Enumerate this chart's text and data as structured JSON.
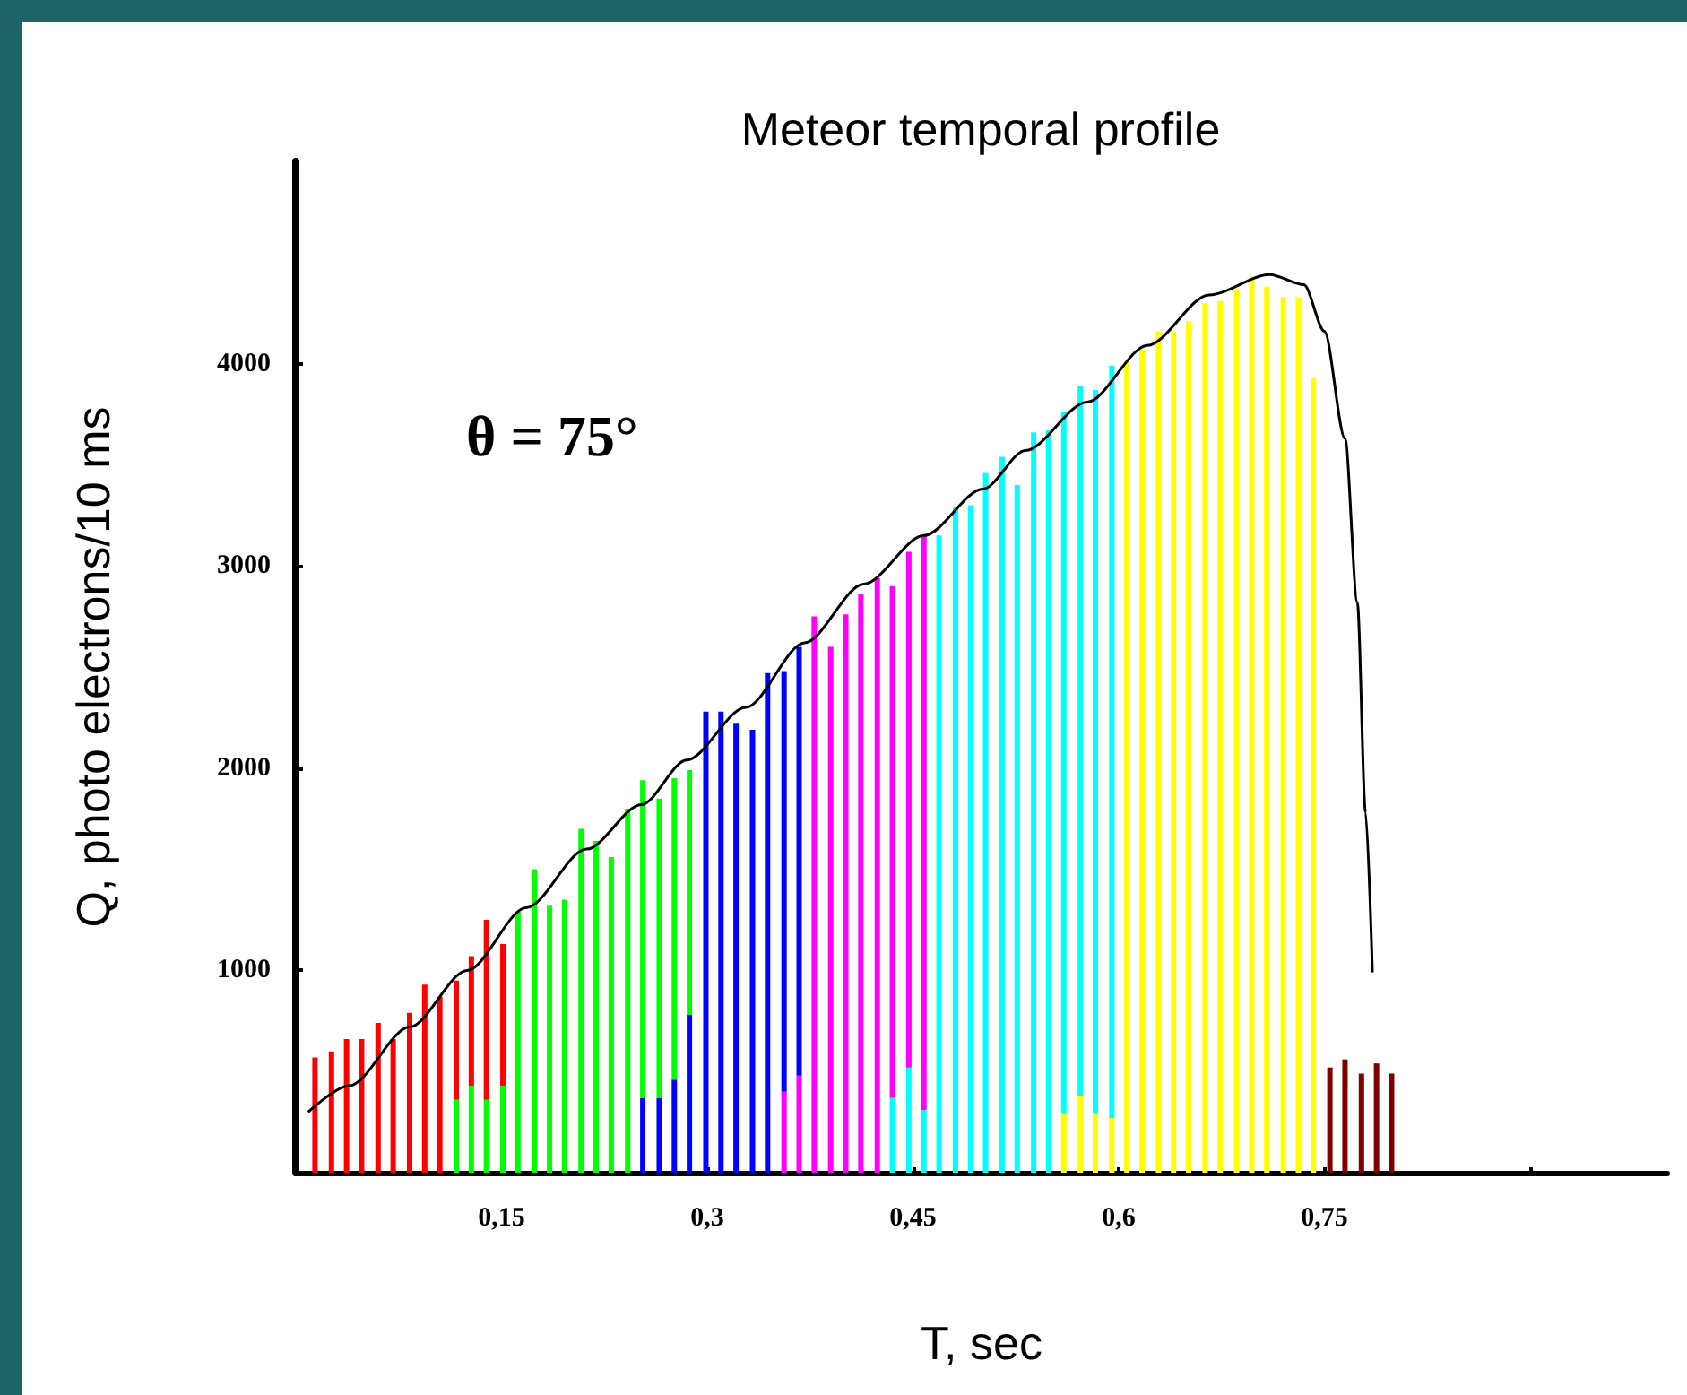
{
  "chart_data": {
    "type": "bar",
    "stacked": true,
    "title": "Meteor temporal profile",
    "xlabel": "T, sec",
    "ylabel": "Q, photo electrons/10 ms",
    "annotations": [
      "θ = 75°"
    ],
    "x": [
      0.014,
      0.026,
      0.037,
      0.048,
      0.06,
      0.071,
      0.083,
      0.094,
      0.105,
      0.117,
      0.128,
      0.139,
      0.151,
      0.162,
      0.174,
      0.185,
      0.196,
      0.208,
      0.219,
      0.23,
      0.242,
      0.253,
      0.265,
      0.276,
      0.287,
      0.299,
      0.31,
      0.321,
      0.333,
      0.344,
      0.356,
      0.367,
      0.378,
      0.39,
      0.401,
      0.412,
      0.424,
      0.435,
      0.447,
      0.458,
      0.469,
      0.481,
      0.492,
      0.503,
      0.515,
      0.526,
      0.538,
      0.549,
      0.56,
      0.572,
      0.583,
      0.595,
      0.606,
      0.617,
      0.629,
      0.64,
      0.651,
      0.663,
      0.674,
      0.686,
      0.697,
      0.708,
      0.72,
      0.731,
      0.742,
      0.754,
      0.765,
      0.777,
      0.788,
      0.799
    ],
    "xlim": [
      0,
      1
    ],
    "xticks": [
      {
        "value": 0.15,
        "label": "0,15"
      },
      {
        "value": 0.3,
        "label": "0,3"
      },
      {
        "value": 0.45,
        "label": "0,45"
      },
      {
        "value": 0.6,
        "label": "0,6"
      },
      {
        "value": 0.75,
        "label": "0,75"
      },
      {
        "value": 0.9,
        "label": null
      }
    ],
    "ylim": [
      0,
      5000
    ],
    "yticks": [
      1000,
      2000,
      3000,
      4000
    ],
    "grid": false,
    "series": [
      {
        "color": "#800000",
        "values": [
          null,
          null,
          null,
          null,
          null,
          null,
          null,
          null,
          null,
          null,
          null,
          null,
          null,
          null,
          null,
          null,
          null,
          null,
          null,
          null,
          null,
          null,
          null,
          null,
          null,
          null,
          null,
          null,
          null,
          null,
          null,
          null,
          null,
          null,
          null,
          null,
          null,
          null,
          null,
          null,
          null,
          null,
          null,
          null,
          null,
          null,
          null,
          null,
          null,
          null,
          null,
          null,
          null,
          null,
          null,
          null,
          null,
          null,
          null,
          null,
          null,
          null,
          null,
          null,
          null,
          520,
          560,
          490,
          540,
          490
        ]
      },
      {
        "color": "#ffff00",
        "values": [
          null,
          null,
          null,
          null,
          null,
          null,
          null,
          null,
          null,
          null,
          null,
          null,
          null,
          null,
          null,
          null,
          null,
          null,
          null,
          null,
          null,
          null,
          null,
          null,
          null,
          null,
          null,
          null,
          null,
          null,
          null,
          null,
          null,
          null,
          null,
          null,
          null,
          null,
          null,
          null,
          null,
          null,
          null,
          null,
          null,
          null,
          null,
          null,
          290,
          380,
          290,
          270,
          4010,
          4070,
          4160,
          4160,
          4210,
          4300,
          4310,
          4370,
          4430,
          4380,
          4330,
          4330,
          3930,
          null,
          null,
          null,
          null,
          null
        ]
      },
      {
        "color": "#00ffff",
        "values": [
          null,
          null,
          null,
          null,
          null,
          null,
          null,
          null,
          null,
          null,
          null,
          null,
          null,
          null,
          null,
          null,
          null,
          null,
          null,
          null,
          null,
          null,
          null,
          null,
          null,
          null,
          null,
          null,
          null,
          null,
          null,
          null,
          null,
          null,
          null,
          null,
          null,
          370,
          520,
          310,
          3150,
          3290,
          3300,
          3460,
          3540,
          3400,
          3660,
          3670,
          3470,
          3510,
          3580,
          3720,
          null,
          null,
          null,
          null,
          null,
          null,
          null,
          null,
          null,
          null,
          null,
          null,
          null,
          null,
          null,
          null,
          null,
          null
        ]
      },
      {
        "color": "#ff00ff",
        "values": [
          null,
          null,
          null,
          null,
          null,
          null,
          null,
          null,
          null,
          null,
          null,
          null,
          null,
          null,
          null,
          null,
          null,
          null,
          null,
          null,
          null,
          null,
          null,
          null,
          null,
          null,
          null,
          null,
          null,
          null,
          400,
          480,
          2750,
          2600,
          2760,
          2860,
          2940,
          2530,
          2550,
          2840,
          null,
          null,
          null,
          null,
          null,
          null,
          null,
          null,
          null,
          null,
          null,
          null,
          null,
          null,
          null,
          null,
          null,
          null,
          null,
          null,
          null,
          null,
          null,
          null,
          null,
          null,
          null,
          null,
          null,
          null
        ]
      },
      {
        "color": "#0000ff",
        "values": [
          null,
          null,
          null,
          null,
          null,
          null,
          null,
          null,
          null,
          null,
          null,
          null,
          null,
          null,
          null,
          null,
          null,
          null,
          null,
          null,
          null,
          370,
          370,
          460,
          780,
          2280,
          2280,
          2220,
          2190,
          2470,
          2080,
          2120,
          null,
          null,
          null,
          null,
          null,
          null,
          null,
          null,
          null,
          null,
          null,
          null,
          null,
          null,
          null,
          null,
          null,
          null,
          null,
          null,
          null,
          null,
          null,
          null,
          null,
          null,
          null,
          null,
          null,
          null,
          null,
          null,
          null,
          null,
          null,
          null,
          null,
          null
        ]
      },
      {
        "color": "#00ff00",
        "values": [
          null,
          null,
          null,
          null,
          null,
          null,
          null,
          null,
          null,
          360,
          430,
          360,
          430,
          1290,
          1500,
          1320,
          1350,
          1700,
          1640,
          1560,
          1800,
          1570,
          1480,
          1490,
          1210,
          null,
          null,
          null,
          null,
          null,
          null,
          null,
          null,
          null,
          null,
          null,
          null,
          null,
          null,
          null,
          null,
          null,
          null,
          null,
          null,
          null,
          null,
          null,
          null,
          null,
          null,
          null,
          null,
          null,
          null,
          null,
          null,
          null,
          null,
          null,
          null,
          null,
          null,
          null,
          null,
          null,
          null,
          null,
          null,
          null
        ]
      },
      {
        "color": "#ff0000",
        "values": [
          570,
          600,
          660,
          660,
          740,
          660,
          790,
          930,
          870,
          590,
          640,
          890,
          700,
          null,
          null,
          null,
          null,
          null,
          null,
          null,
          null,
          null,
          null,
          null,
          null,
          null,
          null,
          null,
          null,
          null,
          null,
          null,
          null,
          null,
          null,
          null,
          null,
          null,
          null,
          null,
          null,
          null,
          null,
          null,
          null,
          null,
          null,
          null,
          null,
          null,
          null,
          null,
          null,
          null,
          null,
          null,
          null,
          null,
          null,
          null,
          null,
          null,
          null,
          null,
          null,
          null,
          null,
          null,
          null,
          null
        ]
      },
      {
        "type": "line",
        "color": "#000000",
        "marker": "none",
        "x": [
          0.009,
          0.039,
          0.083,
          0.125,
          0.168,
          0.212,
          0.252,
          0.285,
          0.328,
          0.371,
          0.414,
          0.458,
          0.501,
          0.532,
          0.577,
          0.621,
          0.666,
          0.71,
          0.735,
          0.75,
          0.765,
          0.774,
          0.78,
          0.785
        ],
        "values": [
          300,
          430,
          720,
          1000,
          1310,
          1600,
          1820,
          2040,
          2300,
          2620,
          2910,
          3150,
          3380,
          3570,
          3810,
          4090,
          4340,
          4440,
          4390,
          4160,
          3630,
          2820,
          1780,
          990
        ]
      }
    ]
  }
}
